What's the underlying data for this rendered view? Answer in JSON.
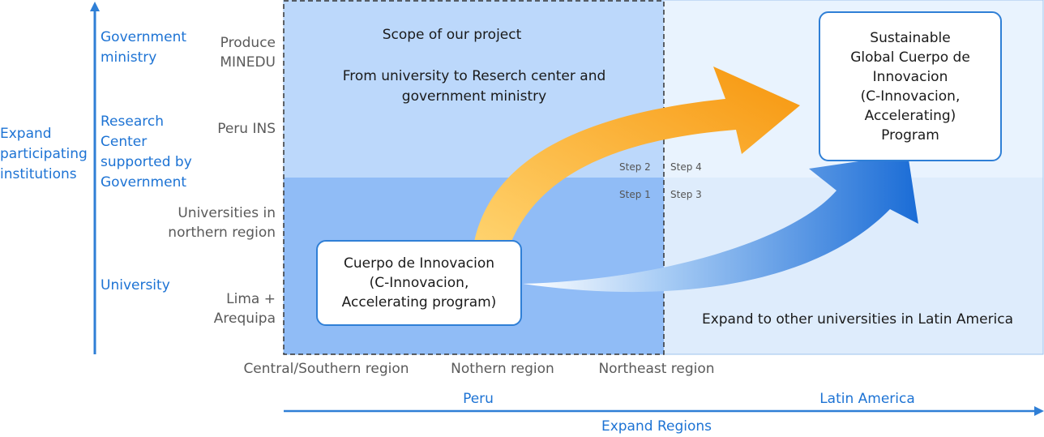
{
  "colors": {
    "accent_blue": "#1d73d4",
    "scope_top": "#bcd8fb",
    "scope_bottom": "#90bcf6",
    "latam_top": "#e9f3fe",
    "latam_bottom": "#deecfc",
    "orange_arrow": "#f9a21b",
    "blue_arrow": "#1f72d9"
  },
  "y_axis": {
    "title": "Expand participating institutions",
    "levels": [
      "Government ministry",
      "Research Center supported by Government",
      "University"
    ]
  },
  "rows": {
    "gov": "Produce MINEDU",
    "research": "Peru INS",
    "north": "Universities in northern region",
    "lima": "Lima + Arequipa"
  },
  "scope": {
    "title": "Scope of our project",
    "subtitle": "From university to Reserch center and government ministry"
  },
  "steps": {
    "step1": "Step 1",
    "step2": "Step 2",
    "step3": "Step 3",
    "step4": "Step 4"
  },
  "boxes": {
    "cuerpo": [
      "Cuerpo de Innovacion",
      "(C-Innovacion,",
      "Accelerating program)"
    ],
    "global": [
      "Sustainable",
      "Global Cuerpo de",
      "Innovacion",
      "(C-Innovacion,",
      "Accelerating)",
      "Program"
    ]
  },
  "latam_note": "Expand to other universities in Latin America",
  "x_axis": {
    "regions": [
      "Central/Southern region",
      "Nothern region",
      "Northeast region"
    ],
    "peru": "Peru",
    "latin_america": "Latin America",
    "title": "Expand Regions"
  }
}
